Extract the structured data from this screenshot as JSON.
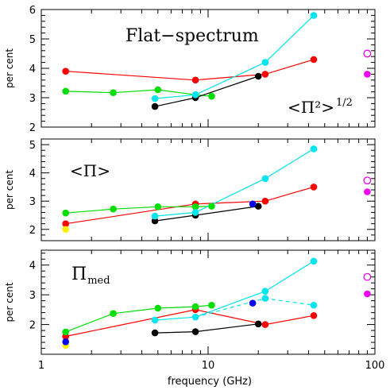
{
  "chart_data": [
    {
      "type": "line",
      "title": "Flat−spectrum",
      "annotation": "<Π²>",
      "annotation_sup": "1/2",
      "ylabel": "per cent",
      "xscale": "log",
      "xlim": [
        1,
        100
      ],
      "ylim": [
        2,
        6
      ],
      "yticks": [
        2,
        3,
        4,
        5,
        6
      ],
      "series": [
        {
          "color": "#ff0000",
          "style": "solid",
          "x": [
            1.4,
            8.4,
            22,
            43
          ],
          "y": [
            3.9,
            3.6,
            3.8,
            4.3
          ]
        },
        {
          "color": "#00dd00",
          "style": "solid",
          "x": [
            1.4,
            2.7,
            5,
            8.4,
            10.5
          ],
          "y": [
            3.22,
            3.17,
            3.27,
            3.1,
            3.05
          ]
        },
        {
          "color": "#000000",
          "style": "solid",
          "x": [
            4.8,
            8.4,
            20
          ],
          "y": [
            2.7,
            3.0,
            3.73
          ]
        },
        {
          "color": "#00e5ee",
          "style": "solid",
          "x": [
            4.8,
            8.4,
            22,
            43
          ],
          "y": [
            2.97,
            3.1,
            4.2,
            5.8
          ]
        }
      ],
      "points": [
        {
          "x": 90,
          "y": 4.5,
          "color": "#ee00ee",
          "filled": false
        },
        {
          "x": 90,
          "y": 3.8,
          "color": "#ee00ee",
          "filled": true
        }
      ]
    },
    {
      "type": "line",
      "annotation": "<Π>",
      "ylabel": "per cent",
      "xscale": "log",
      "xlim": [
        1,
        100
      ],
      "ylim": [
        1.6,
        5.2
      ],
      "yticks": [
        2,
        3,
        4,
        5
      ],
      "series": [
        {
          "color": "#ff0000",
          "style": "solid",
          "x": [
            1.4,
            8.4,
            22,
            43
          ],
          "y": [
            2.2,
            2.9,
            3.0,
            3.5
          ]
        },
        {
          "color": "#00dd00",
          "style": "solid",
          "x": [
            1.4,
            2.7,
            5,
            8.4,
            10.5
          ],
          "y": [
            2.58,
            2.72,
            2.8,
            2.8,
            2.82
          ]
        },
        {
          "color": "#000000",
          "style": "solid",
          "x": [
            4.8,
            8.4,
            20
          ],
          "y": [
            2.3,
            2.5,
            2.82
          ]
        },
        {
          "color": "#00e5ee",
          "style": "solid",
          "x": [
            4.8,
            8.4,
            22,
            43
          ],
          "y": [
            2.47,
            2.6,
            3.8,
            4.85
          ]
        }
      ],
      "points": [
        {
          "x": 1.4,
          "y": 2.0,
          "color": "#ffee00",
          "filled": true
        },
        {
          "x": 18.5,
          "y": 2.9,
          "color": "#0000ee",
          "filled": true
        },
        {
          "x": 90,
          "y": 3.73,
          "color": "#ee00ee",
          "filled": false
        },
        {
          "x": 90,
          "y": 3.33,
          "color": "#ee00ee",
          "filled": true
        }
      ]
    },
    {
      "type": "line",
      "annotation": "Π",
      "annotation_sub": "med",
      "ylabel": "per cent",
      "xlabel": "frequency (GHz)",
      "xscale": "log",
      "xlim": [
        1,
        100
      ],
      "xticks": [
        1,
        10,
        100
      ],
      "ylim": [
        1.0,
        4.5
      ],
      "yticks": [
        2,
        3,
        4
      ],
      "series": [
        {
          "color": "#ff0000",
          "style": "solid",
          "x": [
            1.4,
            8.4,
            22,
            43
          ],
          "y": [
            1.6,
            2.5,
            2.0,
            2.3
          ]
        },
        {
          "color": "#00dd00",
          "style": "solid",
          "x": [
            1.4,
            2.7,
            5,
            8.4,
            10.5
          ],
          "y": [
            1.75,
            2.37,
            2.55,
            2.6,
            2.65
          ]
        },
        {
          "color": "#000000",
          "style": "solid",
          "x": [
            4.8,
            8.4,
            20
          ],
          "y": [
            1.72,
            1.76,
            2.02
          ]
        },
        {
          "color": "#00e5ee",
          "style": "solid",
          "x": [
            4.8,
            8.4,
            22,
            43
          ],
          "y": [
            2.15,
            2.25,
            3.12,
            4.13
          ]
        },
        {
          "color": "#00e5ee",
          "style": "dashed",
          "x": [
            8.4,
            22,
            43
          ],
          "y": [
            2.25,
            2.88,
            2.65
          ]
        }
      ],
      "points": [
        {
          "x": 1.4,
          "y": 1.3,
          "color": "#ffee00",
          "filled": true
        },
        {
          "x": 1.4,
          "y": 1.42,
          "color": "#0000ee",
          "filled": true
        },
        {
          "x": 18.5,
          "y": 2.72,
          "color": "#0000ee",
          "filled": true
        },
        {
          "x": 90,
          "y": 3.6,
          "color": "#ee00ee",
          "filled": false
        },
        {
          "x": 90,
          "y": 3.03,
          "color": "#ee00ee",
          "filled": true
        }
      ]
    }
  ]
}
